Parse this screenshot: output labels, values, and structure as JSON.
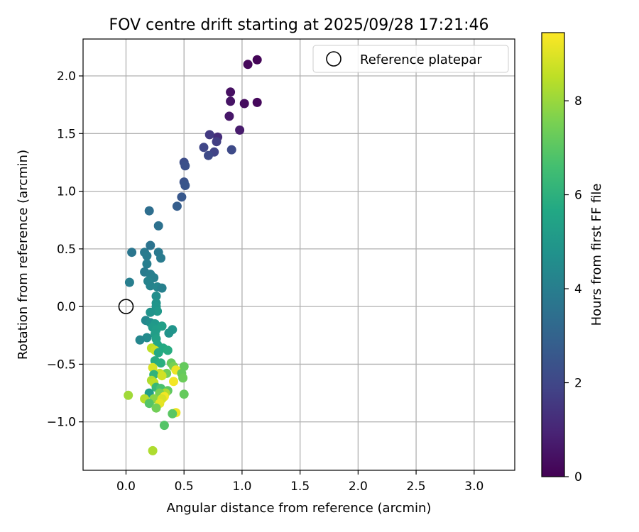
{
  "chart_data": {
    "type": "scatter",
    "title": "FOV centre drift starting at 2025/09/28 17:21:46",
    "xlabel": "Angular distance from reference (arcmin)",
    "ylabel": "Rotation from reference (arcmin)",
    "xlim": [
      -0.37,
      3.35
    ],
    "ylim": [
      -1.42,
      2.32
    ],
    "xticks": [
      0.0,
      0.5,
      1.0,
      1.5,
      2.0,
      2.5,
      3.0
    ],
    "xtick_labels": [
      "0.0",
      "0.5",
      "1.0",
      "1.5",
      "2.0",
      "2.5",
      "3.0"
    ],
    "yticks": [
      -1.0,
      -0.5,
      0.0,
      0.5,
      1.0,
      1.5,
      2.0
    ],
    "ytick_labels": [
      "−1.0",
      "−0.5",
      "0.0",
      "0.5",
      "1.0",
      "1.5",
      "2.0"
    ],
    "grid": true,
    "legend": {
      "position": "top-right",
      "entries": [
        "Reference platepar"
      ]
    },
    "reference_point": {
      "x": 0.0,
      "y": 0.0,
      "label": "Reference platepar"
    },
    "colorbar": {
      "label": "Hours from first FF file",
      "range": [
        0,
        9.45
      ],
      "ticks": [
        0,
        2,
        4,
        6,
        8
      ],
      "tick_labels": [
        "0",
        "2",
        "4",
        "6",
        "8"
      ],
      "colormap": "viridis"
    },
    "series": [
      {
        "name": "FOV centre",
        "points": [
          {
            "x": 1.13,
            "y": 2.14,
            "c": 0.1
          },
          {
            "x": 1.05,
            "y": 2.1,
            "c": 0.2
          },
          {
            "x": 0.9,
            "y": 1.86,
            "c": 0.4
          },
          {
            "x": 0.9,
            "y": 1.78,
            "c": 0.5
          },
          {
            "x": 1.02,
            "y": 1.76,
            "c": 0.3
          },
          {
            "x": 1.13,
            "y": 1.77,
            "c": 0.2
          },
          {
            "x": 0.89,
            "y": 1.65,
            "c": 0.6
          },
          {
            "x": 0.98,
            "y": 1.53,
            "c": 0.7
          },
          {
            "x": 0.79,
            "y": 1.47,
            "c": 1.2
          },
          {
            "x": 0.72,
            "y": 1.49,
            "c": 1.6
          },
          {
            "x": 0.78,
            "y": 1.43,
            "c": 1.7
          },
          {
            "x": 0.67,
            "y": 1.38,
            "c": 2.0
          },
          {
            "x": 0.76,
            "y": 1.34,
            "c": 1.9
          },
          {
            "x": 0.71,
            "y": 1.31,
            "c": 2.1
          },
          {
            "x": 0.91,
            "y": 1.36,
            "c": 2.1
          },
          {
            "x": 0.5,
            "y": 1.25,
            "c": 2.2
          },
          {
            "x": 0.51,
            "y": 1.22,
            "c": 2.3
          },
          {
            "x": 0.5,
            "y": 1.08,
            "c": 2.4
          },
          {
            "x": 0.51,
            "y": 1.05,
            "c": 2.5
          },
          {
            "x": 0.48,
            "y": 0.95,
            "c": 2.6
          },
          {
            "x": 0.44,
            "y": 0.87,
            "c": 2.8
          },
          {
            "x": 0.2,
            "y": 0.83,
            "c": 3.4
          },
          {
            "x": 0.28,
            "y": 0.7,
            "c": 3.5
          },
          {
            "x": 0.21,
            "y": 0.53,
            "c": 3.6
          },
          {
            "x": 0.05,
            "y": 0.47,
            "c": 3.7
          },
          {
            "x": 0.16,
            "y": 0.47,
            "c": 3.8
          },
          {
            "x": 0.18,
            "y": 0.44,
            "c": 3.9
          },
          {
            "x": 0.28,
            "y": 0.47,
            "c": 3.8
          },
          {
            "x": 0.3,
            "y": 0.42,
            "c": 3.9
          },
          {
            "x": 0.18,
            "y": 0.37,
            "c": 4.0
          },
          {
            "x": 0.16,
            "y": 0.3,
            "c": 3.9
          },
          {
            "x": 0.21,
            "y": 0.28,
            "c": 4.0
          },
          {
            "x": 0.24,
            "y": 0.25,
            "c": 4.1
          },
          {
            "x": 0.19,
            "y": 0.22,
            "c": 4.2
          },
          {
            "x": 0.03,
            "y": 0.21,
            "c": 4.0
          },
          {
            "x": 0.21,
            "y": 0.18,
            "c": 4.2
          },
          {
            "x": 0.27,
            "y": 0.17,
            "c": 4.3
          },
          {
            "x": 0.31,
            "y": 0.16,
            "c": 4.1
          },
          {
            "x": 0.26,
            "y": 0.09,
            "c": 4.6
          },
          {
            "x": 0.26,
            "y": 0.03,
            "c": 4.8
          },
          {
            "x": 0.26,
            "y": 0.0,
            "c": 4.9
          },
          {
            "x": 0.27,
            "y": -0.04,
            "c": 5.0
          },
          {
            "x": 0.21,
            "y": -0.05,
            "c": 4.8
          },
          {
            "x": 0.17,
            "y": -0.12,
            "c": 4.4
          },
          {
            "x": 0.21,
            "y": -0.14,
            "c": 4.6
          },
          {
            "x": 0.25,
            "y": -0.15,
            "c": 5.0
          },
          {
            "x": 0.23,
            "y": -0.18,
            "c": 5.1
          },
          {
            "x": 0.26,
            "y": -0.2,
            "c": 5.2
          },
          {
            "x": 0.31,
            "y": -0.17,
            "c": 5.3
          },
          {
            "x": 0.4,
            "y": -0.2,
            "c": 4.9
          },
          {
            "x": 0.37,
            "y": -0.23,
            "c": 4.8
          },
          {
            "x": 0.25,
            "y": -0.24,
            "c": 5.2
          },
          {
            "x": 0.18,
            "y": -0.27,
            "c": 4.5
          },
          {
            "x": 0.12,
            "y": -0.29,
            "c": 4.3
          },
          {
            "x": 0.26,
            "y": -0.28,
            "c": 5.4
          },
          {
            "x": 0.27,
            "y": -0.33,
            "c": 5.6
          },
          {
            "x": 0.32,
            "y": -0.36,
            "c": 5.7
          },
          {
            "x": 0.36,
            "y": -0.38,
            "c": 5.8
          },
          {
            "x": 0.22,
            "y": -0.36,
            "c": 8.5
          },
          {
            "x": 0.25,
            "y": -0.38,
            "c": 8.7
          },
          {
            "x": 0.28,
            "y": -0.4,
            "c": 5.7
          },
          {
            "x": 0.25,
            "y": -0.47,
            "c": 5.8
          },
          {
            "x": 0.3,
            "y": -0.49,
            "c": 5.9
          },
          {
            "x": 0.39,
            "y": -0.49,
            "c": 7.2
          },
          {
            "x": 0.41,
            "y": -0.52,
            "c": 7.5
          },
          {
            "x": 0.5,
            "y": -0.52,
            "c": 7.2
          },
          {
            "x": 0.23,
            "y": -0.53,
            "c": 8.9
          },
          {
            "x": 0.43,
            "y": -0.55,
            "c": 9.2
          },
          {
            "x": 0.35,
            "y": -0.58,
            "c": 7.4
          },
          {
            "x": 0.29,
            "y": -0.58,
            "c": 8.6
          },
          {
            "x": 0.24,
            "y": -0.59,
            "c": 6.1
          },
          {
            "x": 0.48,
            "y": -0.58,
            "c": 7.2
          },
          {
            "x": 0.31,
            "y": -0.6,
            "c": 8.8
          },
          {
            "x": 0.49,
            "y": -0.62,
            "c": 7.3
          },
          {
            "x": 0.22,
            "y": -0.64,
            "c": 8.3
          },
          {
            "x": 0.24,
            "y": -0.66,
            "c": 8.5
          },
          {
            "x": 0.41,
            "y": -0.65,
            "c": 9.3
          },
          {
            "x": 0.26,
            "y": -0.7,
            "c": 6.3
          },
          {
            "x": 0.3,
            "y": -0.71,
            "c": 6.7
          },
          {
            "x": 0.36,
            "y": -0.73,
            "c": 7.1
          },
          {
            "x": 0.34,
            "y": -0.75,
            "c": 8.3
          },
          {
            "x": 0.29,
            "y": -0.75,
            "c": 7.5
          },
          {
            "x": 0.2,
            "y": -0.75,
            "c": 5.2
          },
          {
            "x": 0.5,
            "y": -0.76,
            "c": 7.2
          },
          {
            "x": 0.02,
            "y": -0.77,
            "c": 8.1
          },
          {
            "x": 0.33,
            "y": -0.78,
            "c": 9.3
          },
          {
            "x": 0.16,
            "y": -0.8,
            "c": 8.4
          },
          {
            "x": 0.24,
            "y": -0.8,
            "c": 7.8
          },
          {
            "x": 0.31,
            "y": -0.8,
            "c": 8.9
          },
          {
            "x": 0.2,
            "y": -0.84,
            "c": 6.9
          },
          {
            "x": 0.29,
            "y": -0.84,
            "c": 9.1
          },
          {
            "x": 0.26,
            "y": -0.88,
            "c": 7.4
          },
          {
            "x": 0.43,
            "y": -0.92,
            "c": 9.2
          },
          {
            "x": 0.4,
            "y": -0.93,
            "c": 7.0
          },
          {
            "x": 0.33,
            "y": -1.03,
            "c": 6.9
          },
          {
            "x": 0.23,
            "y": -1.25,
            "c": 8.3
          }
        ]
      }
    ]
  }
}
